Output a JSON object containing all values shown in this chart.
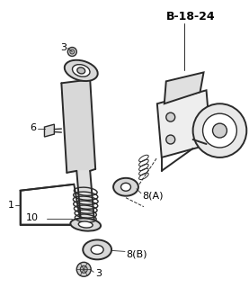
{
  "bg_color": "#ffffff",
  "line_color": "#2a2a2a",
  "label_color": "#000000",
  "figsize": [
    2.77,
    3.2
  ],
  "dpi": 100,
  "shock_color": "#e0e0e0",
  "bracket_color": "#f0f0f0"
}
